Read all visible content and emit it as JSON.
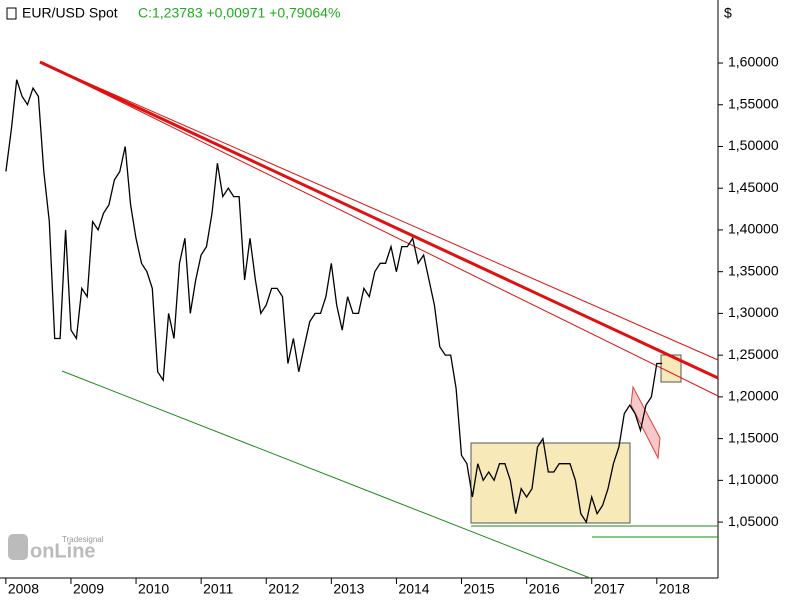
{
  "chart_data": {
    "type": "line",
    "title": "EUR/USD Spot",
    "subtitle": "C:1,23783 +0,00971 +0,79064%",
    "y_axis_label": "$",
    "logo": {
      "top": "Tradesignal",
      "main": "onLine"
    },
    "x": [
      2008,
      2008.083,
      2008.167,
      2008.25,
      2008.333,
      2008.417,
      2008.5,
      2008.583,
      2008.667,
      2008.75,
      2008.833,
      2008.917,
      2009,
      2009.083,
      2009.167,
      2009.25,
      2009.333,
      2009.417,
      2009.5,
      2009.583,
      2009.667,
      2009.75,
      2009.833,
      2009.917,
      2010,
      2010.083,
      2010.167,
      2010.25,
      2010.333,
      2010.417,
      2010.5,
      2010.583,
      2010.667,
      2010.75,
      2010.833,
      2010.917,
      2011,
      2011.083,
      2011.167,
      2011.25,
      2011.333,
      2011.417,
      2011.5,
      2011.583,
      2011.667,
      2011.75,
      2011.833,
      2011.917,
      2012,
      2012.083,
      2012.167,
      2012.25,
      2012.333,
      2012.417,
      2012.5,
      2012.583,
      2012.667,
      2012.75,
      2012.833,
      2012.917,
      2013,
      2013.083,
      2013.167,
      2013.25,
      2013.333,
      2013.417,
      2013.5,
      2013.583,
      2013.667,
      2013.75,
      2013.833,
      2013.917,
      2014,
      2014.083,
      2014.167,
      2014.25,
      2014.333,
      2014.417,
      2014.5,
      2014.583,
      2014.667,
      2014.75,
      2014.833,
      2014.917,
      2015,
      2015.083,
      2015.167,
      2015.25,
      2015.333,
      2015.417,
      2015.5,
      2015.583,
      2015.667,
      2015.75,
      2015.833,
      2015.917,
      2016,
      2016.083,
      2016.167,
      2016.25,
      2016.333,
      2016.417,
      2016.5,
      2016.583,
      2016.667,
      2016.75,
      2016.833,
      2016.917,
      2017,
      2017.083,
      2017.167,
      2017.25,
      2017.333,
      2017.417,
      2017.5,
      2017.583,
      2017.667,
      2017.75,
      2017.833,
      2017.917,
      2018,
      2018.083
    ],
    "series": [
      {
        "name": "EUR/USD",
        "color": "#000000",
        "values": [
          1.47,
          1.52,
          1.58,
          1.56,
          1.55,
          1.57,
          1.56,
          1.47,
          1.41,
          1.27,
          1.27,
          1.4,
          1.28,
          1.27,
          1.33,
          1.32,
          1.41,
          1.4,
          1.42,
          1.43,
          1.46,
          1.47,
          1.5,
          1.43,
          1.39,
          1.36,
          1.35,
          1.33,
          1.23,
          1.22,
          1.3,
          1.27,
          1.36,
          1.39,
          1.3,
          1.34,
          1.37,
          1.38,
          1.42,
          1.48,
          1.44,
          1.45,
          1.44,
          1.44,
          1.34,
          1.39,
          1.34,
          1.3,
          1.31,
          1.33,
          1.33,
          1.32,
          1.24,
          1.27,
          1.23,
          1.26,
          1.29,
          1.3,
          1.3,
          1.32,
          1.36,
          1.31,
          1.28,
          1.32,
          1.3,
          1.3,
          1.33,
          1.32,
          1.35,
          1.36,
          1.36,
          1.38,
          1.35,
          1.38,
          1.38,
          1.39,
          1.36,
          1.37,
          1.34,
          1.31,
          1.26,
          1.25,
          1.25,
          1.21,
          1.13,
          1.12,
          1.08,
          1.12,
          1.1,
          1.11,
          1.1,
          1.12,
          1.12,
          1.1,
          1.06,
          1.09,
          1.08,
          1.09,
          1.14,
          1.15,
          1.11,
          1.11,
          1.12,
          1.12,
          1.12,
          1.1,
          1.06,
          1.05,
          1.08,
          1.06,
          1.07,
          1.09,
          1.12,
          1.14,
          1.18,
          1.19,
          1.18,
          1.16,
          1.19,
          1.2,
          1.24,
          1.24
        ]
      }
    ],
    "xlim": [
      2007.91,
      2018.94
    ],
    "xticks": [
      2008,
      2009,
      2010,
      2011,
      2012,
      2013,
      2014,
      2015,
      2016,
      2017,
      2018
    ],
    "ylim": [
      0.983,
      1.6755
    ],
    "yticks": [
      {
        "value": 1.05,
        "label": "1,05000"
      },
      {
        "value": 1.1,
        "label": "1,10000"
      },
      {
        "value": 1.15,
        "label": "1,15000"
      },
      {
        "value": 1.2,
        "label": "1,20000"
      },
      {
        "value": 1.25,
        "label": "1,25000"
      },
      {
        "value": 1.3,
        "label": "1,30000"
      },
      {
        "value": 1.35,
        "label": "1,35000"
      },
      {
        "value": 1.4,
        "label": "1,40000"
      },
      {
        "value": 1.45,
        "label": "1,45000"
      },
      {
        "value": 1.5,
        "label": "1,50000"
      },
      {
        "value": 1.55,
        "label": "1,55000"
      },
      {
        "value": 1.6,
        "label": "1,60000"
      }
    ],
    "subtitle_color": "#22aa22"
  }
}
